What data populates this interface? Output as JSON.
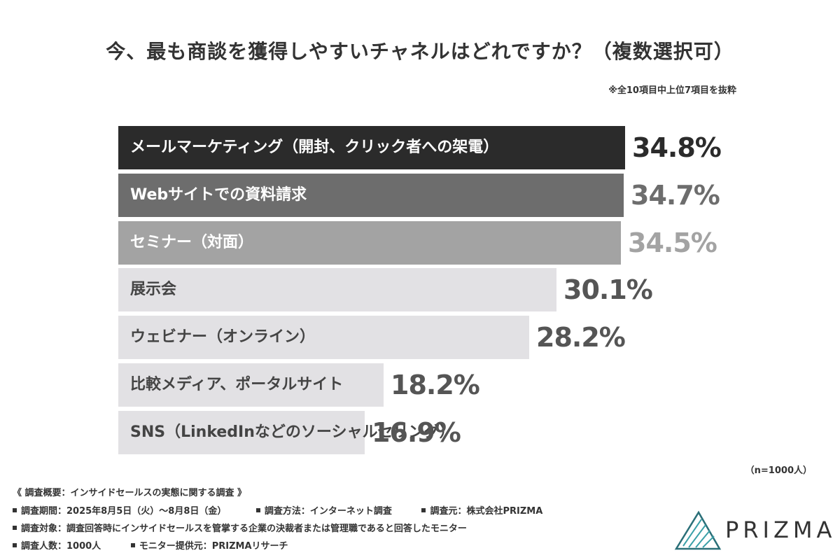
{
  "title": "今、最も商談を獲得しやすいチャネルはどれですか？（複数選択可）",
  "note": "※全10項目中上位7項目を抜粋",
  "sample_size": "（n=1000人）",
  "survey": {
    "header": "《 調査概要：インサイドセールスの実態に関する調査 》",
    "period": "調査期間：2025年8月5日（火）〜8月8日（金）",
    "method": "調査方法：インターネット調査",
    "organizer": "調査元：株式会社PRIZMA",
    "target": "調査対象：調査回答時にインサイドセールスを管掌する企業の決裁者または管理職であると回答したモニター",
    "count": "調査人数：1000人",
    "provider": "モニター提供元：PRIZMAリサーチ"
  },
  "logo": {
    "text": "PRIZMA",
    "icon": "prism-triangle-icon"
  },
  "chart_data": {
    "type": "bar",
    "orientation": "horizontal",
    "unit": "%",
    "categories": [
      "メールマーケティング（開封、クリック者への架電）",
      "Webサイトでの資料請求",
      "セミナー（対面）",
      "展示会",
      "ウェビナー（オンライン）",
      "比較メディア、ポータルサイト",
      "SNS（LinkedInなどのソーシャルセリング）"
    ],
    "values": [
      34.8,
      34.7,
      34.5,
      30.1,
      28.2,
      18.2,
      16.9
    ],
    "value_labels": [
      "34.8%",
      "34.7%",
      "34.5%",
      "30.1%",
      "28.2%",
      "18.2%",
      "16.9%"
    ],
    "bar_colors": [
      "#2b2b2b",
      "#6d6d6d",
      "#a3a3a3",
      "#e2e1e4",
      "#e2e1e4",
      "#e2e1e4",
      "#e2e1e4"
    ],
    "label_colors": [
      "#ffffff",
      "#ffffff",
      "#ffffff",
      "#444444",
      "#444444",
      "#444444",
      "#444444"
    ],
    "value_colors": [
      "#2b2b2b",
      "#6d6d6d",
      "#a3a3a3",
      "#555555",
      "#555555",
      "#555555",
      "#555555"
    ]
  }
}
